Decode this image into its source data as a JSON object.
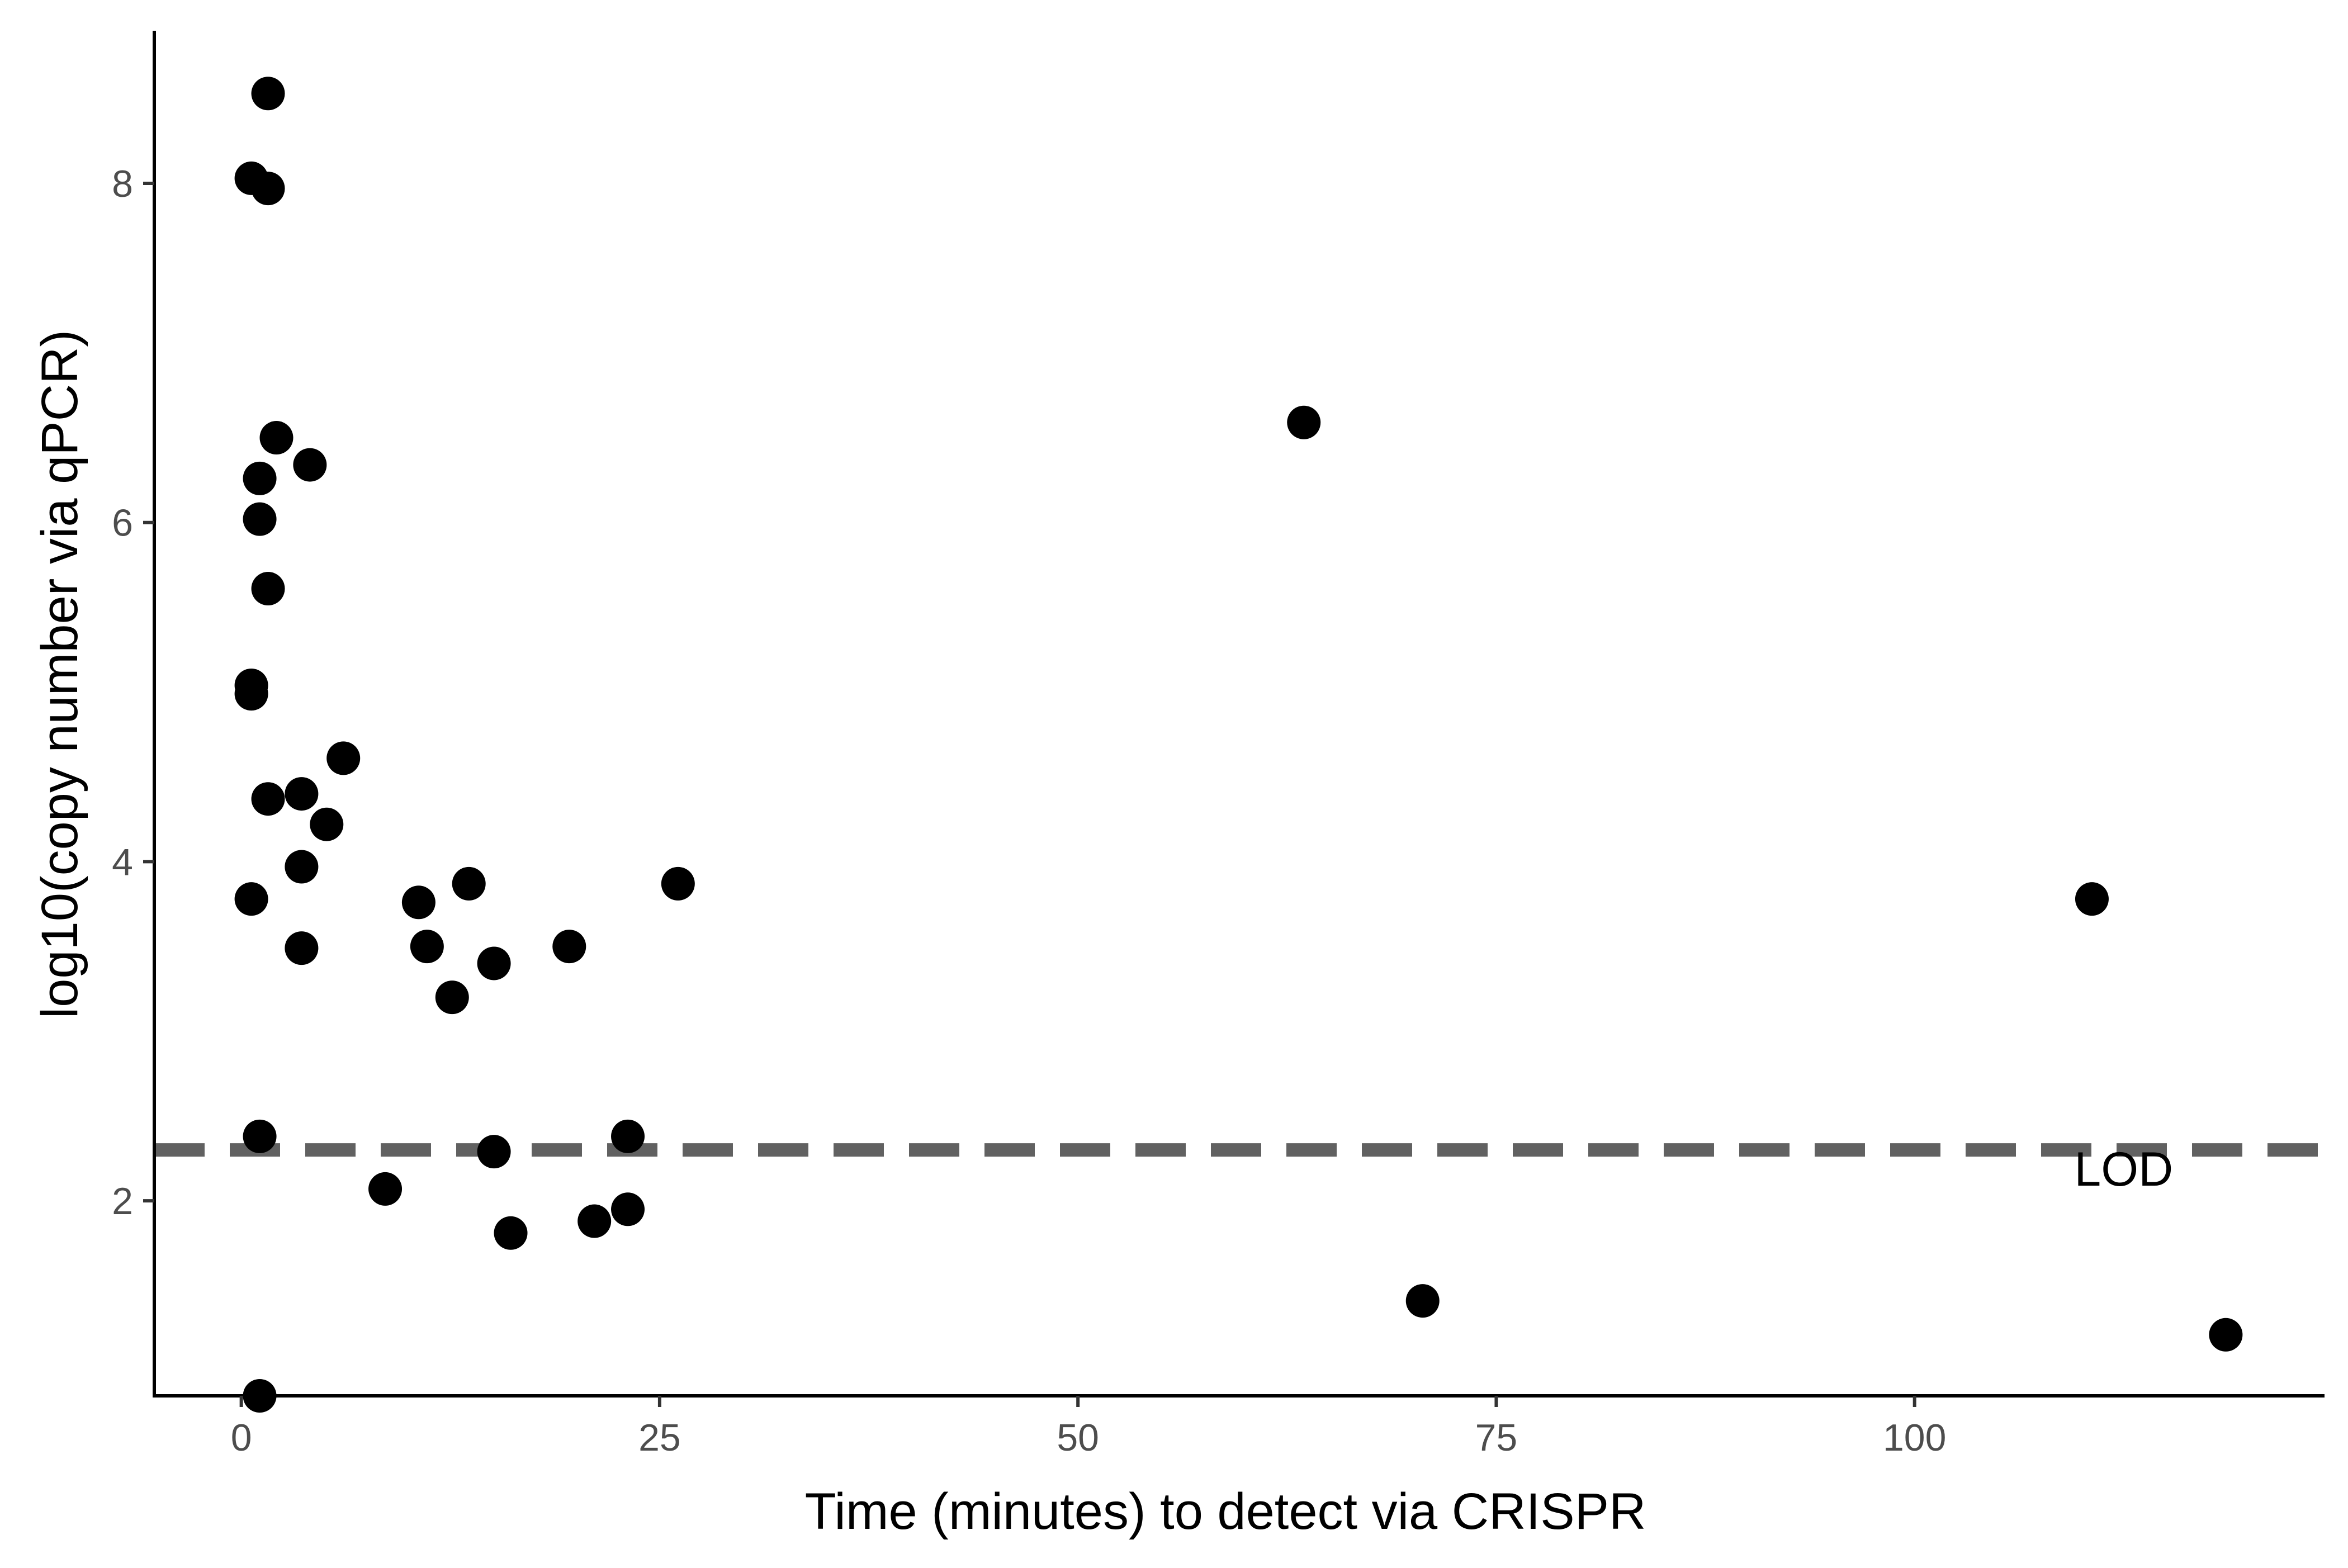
{
  "chart_data": {
    "type": "scatter",
    "title": "",
    "xlabel": "Time (minutes) to detect via CRISPR",
    "ylabel": "log10(copy number via qPCR)",
    "xlim": [
      -5.2,
      124.5
    ],
    "ylim": [
      0.85,
      8.9
    ],
    "x_ticks": [
      0,
      25,
      50,
      75,
      100
    ],
    "x_tick_labels": [
      "0",
      "25",
      "50",
      "75",
      "100"
    ],
    "y_ticks": [
      2,
      4,
      6,
      8
    ],
    "y_tick_labels": [
      "2",
      "4",
      "6",
      "8"
    ],
    "grid": false,
    "legend": "none",
    "point_color": "#000000",
    "reference_line": {
      "y": 2.3,
      "style": "dashed",
      "color": "#616161",
      "label": "LOD"
    },
    "points": [
      {
        "x": 1.6,
        "y": 8.53
      },
      {
        "x": 0.6,
        "y": 8.03
      },
      {
        "x": 1.6,
        "y": 7.97
      },
      {
        "x": 63.5,
        "y": 6.59
      },
      {
        "x": 2.1,
        "y": 6.5
      },
      {
        "x": 4.1,
        "y": 6.34
      },
      {
        "x": 1.1,
        "y": 6.26
      },
      {
        "x": 1.1,
        "y": 6.02
      },
      {
        "x": 1.6,
        "y": 5.61
      },
      {
        "x": 0.6,
        "y": 5.04
      },
      {
        "x": 0.6,
        "y": 4.99
      },
      {
        "x": 6.1,
        "y": 4.61
      },
      {
        "x": 3.6,
        "y": 4.4
      },
      {
        "x": 1.6,
        "y": 4.37
      },
      {
        "x": 5.1,
        "y": 4.22
      },
      {
        "x": 3.6,
        "y": 3.97
      },
      {
        "x": 26.1,
        "y": 3.87
      },
      {
        "x": 13.6,
        "y": 3.87
      },
      {
        "x": 0.6,
        "y": 3.78
      },
      {
        "x": 110.6,
        "y": 3.78
      },
      {
        "x": 10.6,
        "y": 3.76
      },
      {
        "x": 11.1,
        "y": 3.5
      },
      {
        "x": 19.6,
        "y": 3.5
      },
      {
        "x": 3.6,
        "y": 3.49
      },
      {
        "x": 15.1,
        "y": 3.4
      },
      {
        "x": 12.6,
        "y": 3.2
      },
      {
        "x": 1.1,
        "y": 2.38
      },
      {
        "x": 23.1,
        "y": 2.38
      },
      {
        "x": 15.1,
        "y": 2.29
      },
      {
        "x": 8.6,
        "y": 2.07
      },
      {
        "x": 23.1,
        "y": 1.95
      },
      {
        "x": 21.1,
        "y": 1.88
      },
      {
        "x": 16.1,
        "y": 1.81
      },
      {
        "x": 70.6,
        "y": 1.41
      },
      {
        "x": 118.6,
        "y": 1.21
      },
      {
        "x": 1.1,
        "y": 0.85
      }
    ]
  }
}
